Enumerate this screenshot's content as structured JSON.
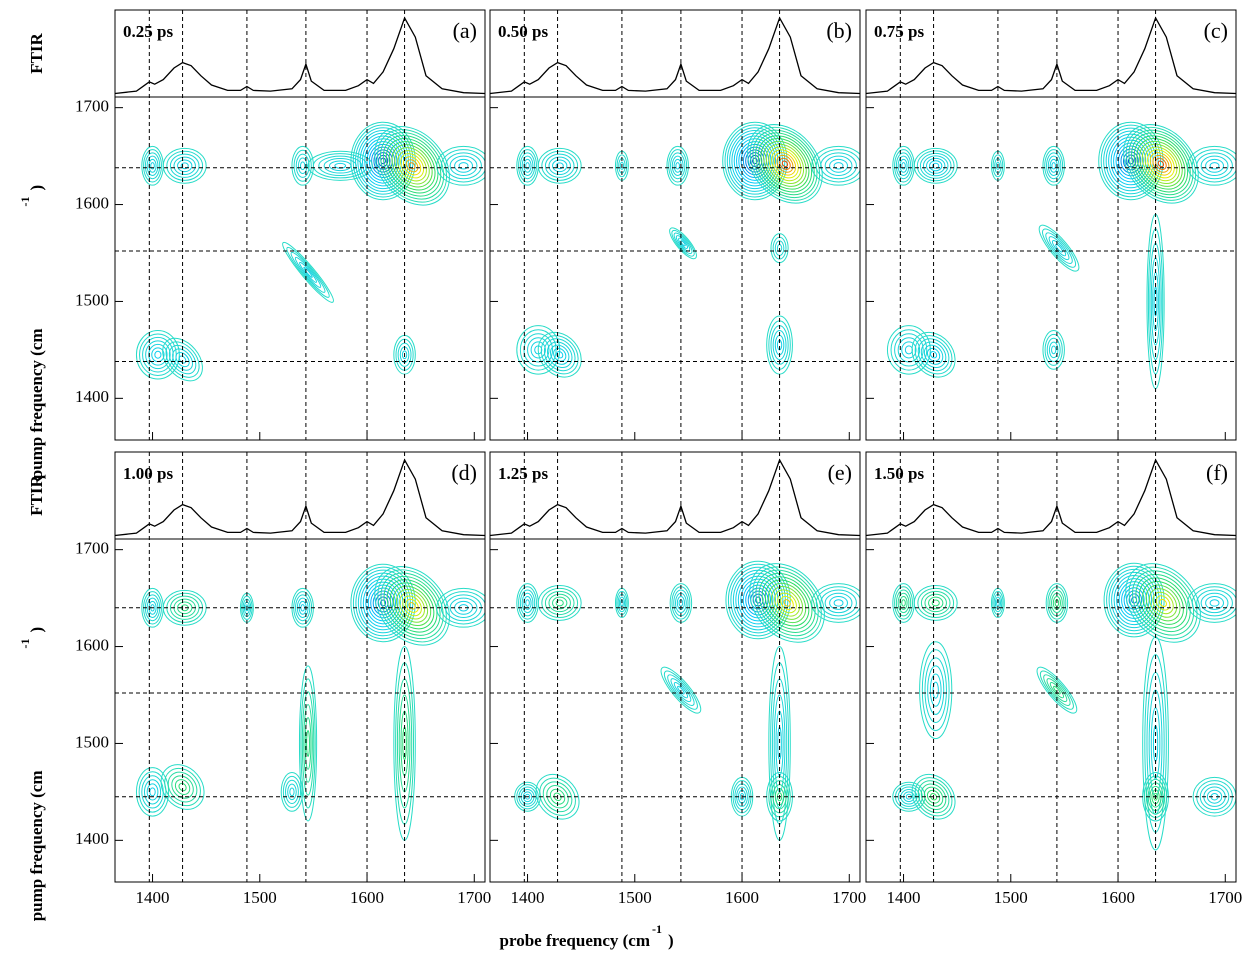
{
  "labels": {
    "ftir": "FTIR",
    "pump": "pump frequency (cm",
    "sup": "-1",
    "close": ")",
    "probe": "probe frequency (cm"
  },
  "ftir": {
    "x": [
      1365,
      1385,
      1392,
      1397,
      1402,
      1410,
      1420,
      1428,
      1436,
      1445,
      1455,
      1470,
      1482,
      1488,
      1494,
      1510,
      1530,
      1538,
      1543,
      1548,
      1560,
      1580,
      1592,
      1600,
      1606,
      1615,
      1625,
      1635,
      1645,
      1655,
      1670,
      1690,
      1710
    ],
    "y": [
      0.02,
      0.05,
      0.12,
      0.17,
      0.14,
      0.2,
      0.35,
      0.42,
      0.38,
      0.25,
      0.13,
      0.06,
      0.06,
      0.11,
      0.06,
      0.05,
      0.08,
      0.2,
      0.4,
      0.18,
      0.06,
      0.06,
      0.12,
      0.2,
      0.15,
      0.3,
      0.6,
      1.0,
      0.75,
      0.25,
      0.08,
      0.03,
      0.02
    ],
    "ylim": [
      0,
      1.05
    ]
  },
  "chart_data": [
    {
      "type": "contour",
      "label": "(a)",
      "time": "0.25 ps",
      "xlim": [
        1365,
        1710
      ],
      "xticks": [
        1400,
        1500,
        1600,
        1700
      ],
      "ylim": [
        1357,
        1711
      ],
      "yticks": [
        1400,
        1500,
        1600,
        1700
      ],
      "vlines": [
        1397,
        1428,
        1488,
        1543,
        1600,
        1635
      ],
      "hlines": [
        1638,
        1552,
        1438
      ],
      "peaks": [
        {
          "x": 1615,
          "y": 1645,
          "amp": -1,
          "w": 30,
          "h": 40
        },
        {
          "x": 1642,
          "y": 1640,
          "amp": 0.9,
          "w": 30,
          "h": 45
        },
        {
          "x": 1400,
          "y": 1640,
          "amp": -0.3,
          "w": 10,
          "h": 20
        },
        {
          "x": 1430,
          "y": 1640,
          "amp": -0.35,
          "w": 20,
          "h": 18
        },
        {
          "x": 1540,
          "y": 1640,
          "amp": -0.25,
          "w": 10,
          "h": 20
        },
        {
          "x": 1575,
          "y": 1640,
          "amp": -0.3,
          "w": 30,
          "h": 15
        },
        {
          "x": 1690,
          "y": 1640,
          "amp": -0.35,
          "w": 25,
          "h": 20
        },
        {
          "x": 1405,
          "y": 1445,
          "amp": -0.4,
          "w": 20,
          "h": 25
        },
        {
          "x": 1428,
          "y": 1440,
          "amp": -0.35,
          "w": 15,
          "h": 25
        },
        {
          "x": 1545,
          "y": 1530,
          "amp": -0.3,
          "w": 6,
          "h": 40
        },
        {
          "x": 1635,
          "y": 1445,
          "amp": -0.25,
          "w": 10,
          "h": 20
        }
      ]
    },
    {
      "type": "contour",
      "label": "(b)",
      "time": "0.50 ps",
      "xlim": [
        1365,
        1710
      ],
      "xticks": [
        1400,
        1500,
        1600,
        1700
      ],
      "ylim": [
        1357,
        1711
      ],
      "yticks": [
        1400,
        1500,
        1600,
        1700
      ],
      "vlines": [
        1397,
        1428,
        1488,
        1543,
        1600,
        1635
      ],
      "hlines": [
        1638,
        1552,
        1438
      ],
      "peaks": [
        {
          "x": 1612,
          "y": 1645,
          "amp": -1,
          "w": 30,
          "h": 40
        },
        {
          "x": 1640,
          "y": 1642,
          "amp": 1,
          "w": 30,
          "h": 45
        },
        {
          "x": 1400,
          "y": 1640,
          "amp": -0.3,
          "w": 10,
          "h": 20
        },
        {
          "x": 1430,
          "y": 1640,
          "amp": -0.35,
          "w": 20,
          "h": 18
        },
        {
          "x": 1488,
          "y": 1640,
          "amp": -0.2,
          "w": 6,
          "h": 15
        },
        {
          "x": 1540,
          "y": 1640,
          "amp": -0.3,
          "w": 10,
          "h": 20
        },
        {
          "x": 1690,
          "y": 1640,
          "amp": -0.35,
          "w": 25,
          "h": 20
        },
        {
          "x": 1410,
          "y": 1450,
          "amp": -0.35,
          "w": 20,
          "h": 25
        },
        {
          "x": 1430,
          "y": 1445,
          "amp": -0.4,
          "w": 18,
          "h": 25
        },
        {
          "x": 1545,
          "y": 1560,
          "amp": -0.3,
          "w": 6,
          "h": 20
        },
        {
          "x": 1635,
          "y": 1455,
          "amp": -0.35,
          "w": 12,
          "h": 30
        },
        {
          "x": 1635,
          "y": 1555,
          "amp": -0.2,
          "w": 8,
          "h": 15
        }
      ]
    },
    {
      "type": "contour",
      "label": "(c)",
      "time": "0.75 ps",
      "xlim": [
        1365,
        1710
      ],
      "xticks": [
        1400,
        1500,
        1600,
        1700
      ],
      "ylim": [
        1357,
        1711
      ],
      "yticks": [
        1400,
        1500,
        1600,
        1700
      ],
      "vlines": [
        1397,
        1428,
        1488,
        1543,
        1600,
        1635
      ],
      "hlines": [
        1638,
        1552,
        1438
      ],
      "peaks": [
        {
          "x": 1612,
          "y": 1645,
          "amp": -0.95,
          "w": 30,
          "h": 40
        },
        {
          "x": 1640,
          "y": 1642,
          "amp": 1,
          "w": 30,
          "h": 45
        },
        {
          "x": 1400,
          "y": 1640,
          "amp": -0.3,
          "w": 10,
          "h": 20
        },
        {
          "x": 1430,
          "y": 1640,
          "amp": -0.4,
          "w": 20,
          "h": 18
        },
        {
          "x": 1488,
          "y": 1640,
          "amp": -0.2,
          "w": 6,
          "h": 15
        },
        {
          "x": 1540,
          "y": 1640,
          "amp": -0.35,
          "w": 10,
          "h": 20
        },
        {
          "x": 1690,
          "y": 1640,
          "amp": -0.35,
          "w": 25,
          "h": 20
        },
        {
          "x": 1405,
          "y": 1450,
          "amp": -0.35,
          "w": 20,
          "h": 25
        },
        {
          "x": 1428,
          "y": 1445,
          "amp": -0.4,
          "w": 18,
          "h": 25
        },
        {
          "x": 1545,
          "y": 1555,
          "amp": -0.3,
          "w": 8,
          "h": 30
        },
        {
          "x": 1635,
          "y": 1500,
          "amp": -0.3,
          "w": 8,
          "h": 90
        },
        {
          "x": 1540,
          "y": 1450,
          "amp": -0.25,
          "w": 10,
          "h": 20
        }
      ]
    },
    {
      "type": "contour",
      "label": "(d)",
      "time": "1.00 ps",
      "xlim": [
        1365,
        1710
      ],
      "xticks": [
        1400,
        1500,
        1600,
        1700
      ],
      "ylim": [
        1357,
        1711
      ],
      "yticks": [
        1400,
        1500,
        1600,
        1700
      ],
      "vlines": [
        1397,
        1428,
        1488,
        1543,
        1600,
        1635
      ],
      "hlines": [
        1640,
        1552,
        1445
      ],
      "peaks": [
        {
          "x": 1615,
          "y": 1645,
          "amp": -0.9,
          "w": 30,
          "h": 40
        },
        {
          "x": 1642,
          "y": 1642,
          "amp": 0.8,
          "w": 30,
          "h": 45
        },
        {
          "x": 1400,
          "y": 1640,
          "amp": -0.3,
          "w": 10,
          "h": 20
        },
        {
          "x": 1430,
          "y": 1640,
          "amp": 0.3,
          "w": 20,
          "h": 18
        },
        {
          "x": 1488,
          "y": 1640,
          "amp": -0.25,
          "w": 6,
          "h": 15
        },
        {
          "x": 1540,
          "y": 1640,
          "amp": -0.35,
          "w": 10,
          "h": 20
        },
        {
          "x": 1690,
          "y": 1640,
          "amp": -0.35,
          "w": 25,
          "h": 20
        },
        {
          "x": 1400,
          "y": 1450,
          "amp": -0.35,
          "w": 15,
          "h": 25
        },
        {
          "x": 1428,
          "y": 1455,
          "amp": 0.35,
          "w": 18,
          "h": 25
        },
        {
          "x": 1545,
          "y": 1500,
          "amp": 0.3,
          "w": 8,
          "h": 80
        },
        {
          "x": 1635,
          "y": 1500,
          "amp": 0.35,
          "w": 10,
          "h": 100
        },
        {
          "x": 1530,
          "y": 1450,
          "amp": -0.25,
          "w": 10,
          "h": 20
        }
      ]
    },
    {
      "type": "contour",
      "label": "(e)",
      "time": "1.25 ps",
      "xlim": [
        1365,
        1710
      ],
      "xticks": [
        1400,
        1500,
        1600,
        1700
      ],
      "ylim": [
        1357,
        1711
      ],
      "yticks": [
        1400,
        1500,
        1600,
        1700
      ],
      "vlines": [
        1397,
        1428,
        1488,
        1543,
        1600,
        1635
      ],
      "hlines": [
        1640,
        1552,
        1445
      ],
      "peaks": [
        {
          "x": 1615,
          "y": 1648,
          "amp": -0.9,
          "w": 30,
          "h": 40
        },
        {
          "x": 1642,
          "y": 1645,
          "amp": 0.8,
          "w": 30,
          "h": 45
        },
        {
          "x": 1400,
          "y": 1645,
          "amp": -0.3,
          "w": 10,
          "h": 20
        },
        {
          "x": 1430,
          "y": 1645,
          "amp": 0.3,
          "w": 20,
          "h": 18
        },
        {
          "x": 1488,
          "y": 1645,
          "amp": -0.25,
          "w": 6,
          "h": 15
        },
        {
          "x": 1543,
          "y": 1645,
          "amp": -0.3,
          "w": 10,
          "h": 20
        },
        {
          "x": 1690,
          "y": 1645,
          "amp": -0.35,
          "w": 25,
          "h": 20
        },
        {
          "x": 1400,
          "y": 1445,
          "amp": -0.3,
          "w": 12,
          "h": 15
        },
        {
          "x": 1428,
          "y": 1445,
          "amp": 0.35,
          "w": 18,
          "h": 25
        },
        {
          "x": 1543,
          "y": 1555,
          "amp": -0.3,
          "w": 8,
          "h": 30
        },
        {
          "x": 1635,
          "y": 1500,
          "amp": -0.3,
          "w": 10,
          "h": 100
        },
        {
          "x": 1635,
          "y": 1445,
          "amp": 0.35,
          "w": 12,
          "h": 25
        },
        {
          "x": 1600,
          "y": 1445,
          "amp": -0.3,
          "w": 10,
          "h": 20
        }
      ]
    },
    {
      "type": "contour",
      "label": "(f)",
      "time": "1.50 ps",
      "xlim": [
        1365,
        1710
      ],
      "xticks": [
        1400,
        1500,
        1600,
        1700
      ],
      "ylim": [
        1357,
        1711
      ],
      "yticks": [
        1400,
        1500,
        1600,
        1700
      ],
      "vlines": [
        1397,
        1428,
        1488,
        1543,
        1600,
        1635
      ],
      "hlines": [
        1640,
        1552,
        1445
      ],
      "peaks": [
        {
          "x": 1615,
          "y": 1648,
          "amp": -0.8,
          "w": 28,
          "h": 38
        },
        {
          "x": 1642,
          "y": 1645,
          "amp": 0.75,
          "w": 30,
          "h": 45
        },
        {
          "x": 1400,
          "y": 1645,
          "amp": 0.3,
          "w": 10,
          "h": 20
        },
        {
          "x": 1430,
          "y": 1645,
          "amp": 0.35,
          "w": 20,
          "h": 18
        },
        {
          "x": 1488,
          "y": 1645,
          "amp": -0.25,
          "w": 6,
          "h": 15
        },
        {
          "x": 1543,
          "y": 1645,
          "amp": 0.35,
          "w": 10,
          "h": 20
        },
        {
          "x": 1690,
          "y": 1645,
          "amp": -0.35,
          "w": 25,
          "h": 20
        },
        {
          "x": 1405,
          "y": 1445,
          "amp": -0.3,
          "w": 15,
          "h": 15
        },
        {
          "x": 1428,
          "y": 1445,
          "amp": 0.4,
          "w": 18,
          "h": 25
        },
        {
          "x": 1430,
          "y": 1555,
          "amp": -0.3,
          "w": 15,
          "h": 50
        },
        {
          "x": 1543,
          "y": 1555,
          "amp": 0.3,
          "w": 8,
          "h": 30
        },
        {
          "x": 1635,
          "y": 1500,
          "amp": -0.3,
          "w": 12,
          "h": 110
        },
        {
          "x": 1635,
          "y": 1445,
          "amp": 0.4,
          "w": 12,
          "h": 25
        },
        {
          "x": 1690,
          "y": 1445,
          "amp": -0.3,
          "w": 20,
          "h": 20
        }
      ]
    }
  ]
}
